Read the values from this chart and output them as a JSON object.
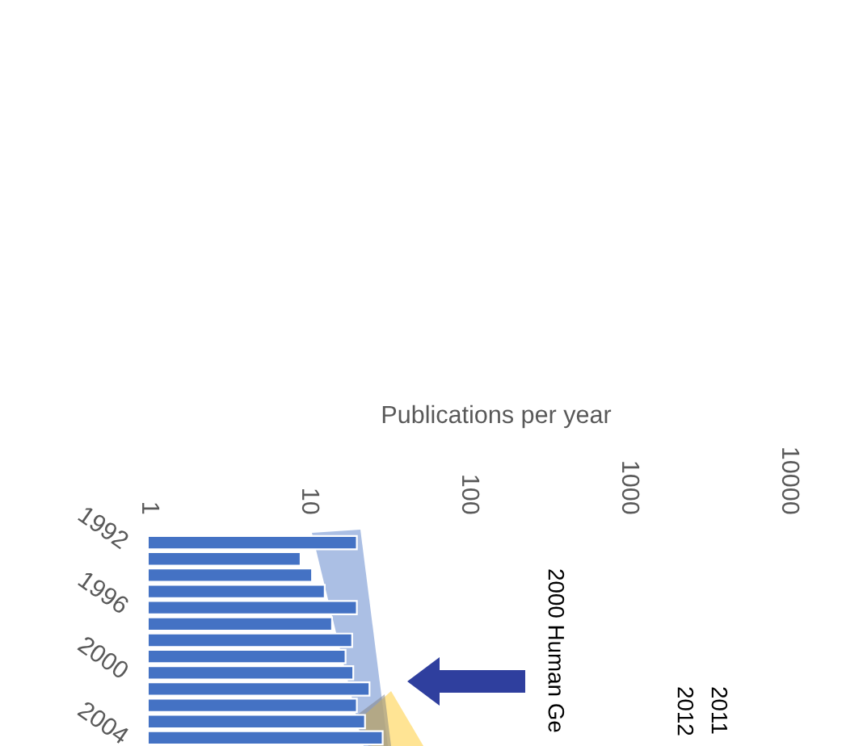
{
  "chart_data": {
    "type": "bar",
    "orientation": "horizontal",
    "xlabel": "Publications per year",
    "categories": [
      "1992",
      null,
      null,
      null,
      "1996",
      null,
      null,
      null,
      "2000",
      null,
      null,
      null,
      "2004"
    ],
    "values": [
      20,
      8.9,
      10.5,
      12.6,
      20,
      14,
      18.7,
      17,
      19,
      24,
      20,
      22.5,
      29
    ],
    "color": "#4472c4",
    "log": "x",
    "xlim": [
      1,
      10000
    ],
    "xticks": [
      1,
      10,
      100,
      1000,
      10000
    ],
    "grid": false,
    "annotations": [
      "2000 Human Ge",
      "2011",
      "2012"
    ]
  }
}
